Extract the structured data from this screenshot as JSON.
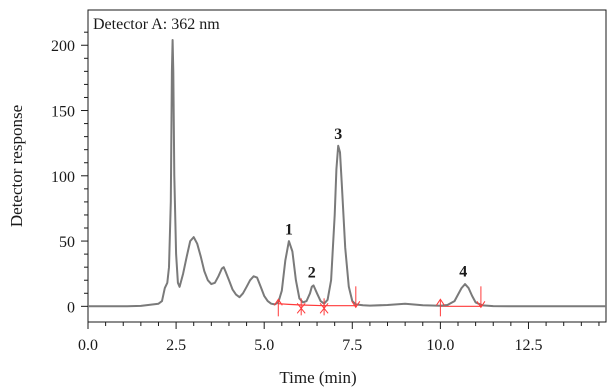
{
  "chart_data": {
    "type": "line",
    "title": "Detector A: 362 nm",
    "xlabel": "Time (min)",
    "ylabel": "Detector response",
    "xlim": [
      0,
      14.7
    ],
    "ylim": [
      -12,
      227
    ],
    "x_ticks": [
      "0.0",
      "2.5",
      "5.0",
      "7.5",
      "10.0",
      "12.5"
    ],
    "x_tick_values": [
      0,
      2.5,
      5.0,
      7.5,
      10.0,
      12.5
    ],
    "y_ticks": [
      "0",
      "50",
      "100",
      "150",
      "200"
    ],
    "y_tick_values": [
      0,
      50,
      100,
      150,
      200
    ],
    "grid": false,
    "series": [
      {
        "color": "#7a7a7a",
        "x": [
          0.0,
          1.0,
          1.5,
          2.0,
          2.1,
          2.18,
          2.25,
          2.3,
          2.35,
          2.38,
          2.4,
          2.42,
          2.45,
          2.5,
          2.55,
          2.6,
          2.7,
          2.8,
          2.9,
          3.0,
          3.1,
          3.2,
          3.3,
          3.4,
          3.5,
          3.6,
          3.7,
          3.8,
          3.85,
          3.9,
          4.0,
          4.1,
          4.2,
          4.3,
          4.4,
          4.5,
          4.6,
          4.7,
          4.8,
          4.9,
          5.0,
          5.1,
          5.2,
          5.3,
          5.4,
          5.5,
          5.6,
          5.7,
          5.8,
          5.9,
          6.0,
          6.1,
          6.2,
          6.3,
          6.35,
          6.4,
          6.5,
          6.6,
          6.7,
          6.8,
          6.9,
          7.0,
          7.05,
          7.1,
          7.15,
          7.2,
          7.3,
          7.4,
          7.5,
          7.6,
          7.8,
          8.0,
          8.5,
          9.0,
          9.5,
          10.0,
          10.2,
          10.4,
          10.5,
          10.6,
          10.7,
          10.8,
          10.9,
          11.0,
          11.2,
          11.5,
          12.0,
          13.0,
          14.0,
          14.7
        ],
        "y": [
          0,
          0,
          0.3,
          2,
          4,
          14,
          18,
          30,
          80,
          180,
          204,
          180,
          100,
          40,
          18,
          15,
          25,
          38,
          50,
          53,
          48,
          38,
          27,
          20,
          17,
          18,
          23,
          29,
          30,
          27,
          20,
          13,
          9,
          7,
          10,
          15,
          20,
          23,
          22,
          15,
          8,
          4,
          2,
          1.5,
          3,
          12,
          35,
          50,
          42,
          20,
          6,
          3,
          4,
          10,
          15,
          16,
          10,
          4,
          2,
          5,
          20,
          70,
          105,
          123,
          118,
          95,
          45,
          15,
          4,
          1.5,
          0.8,
          0.6,
          1,
          2,
          0.8,
          0.4,
          1,
          4,
          9,
          14,
          17,
          14,
          8,
          3,
          0.7,
          0.2,
          0,
          0,
          0,
          0
        ]
      }
    ],
    "baselines": [
      {
        "color": "#ff3a3a",
        "x": [
          5.4,
          5.7,
          6.05,
          6.7,
          7.6
        ],
        "y": [
          2,
          1.5,
          1,
          0.5,
          0.5
        ]
      },
      {
        "color": "#ff3a3a",
        "x": [
          10.0,
          11.15
        ],
        "y": [
          0,
          0
        ]
      }
    ],
    "markers": [
      {
        "color": "#ff3a3a",
        "x": 5.4,
        "dir": "up"
      },
      {
        "color": "#ff3a3a",
        "x": 6.05,
        "dir": "cross"
      },
      {
        "color": "#ff3a3a",
        "x": 6.7,
        "dir": "cross"
      },
      {
        "color": "#ff3a3a",
        "x": 7.6,
        "dir": "down"
      },
      {
        "color": "#ff3a3a",
        "x": 10.0,
        "dir": "up"
      },
      {
        "color": "#ff3a3a",
        "x": 11.15,
        "dir": "down"
      }
    ],
    "annotations": [
      {
        "text": "1",
        "x": 5.7,
        "y": 55
      },
      {
        "text": "2",
        "x": 6.35,
        "y": 22
      },
      {
        "text": "3",
        "x": 7.1,
        "y": 128
      },
      {
        "text": "4",
        "x": 10.65,
        "y": 23
      }
    ]
  }
}
